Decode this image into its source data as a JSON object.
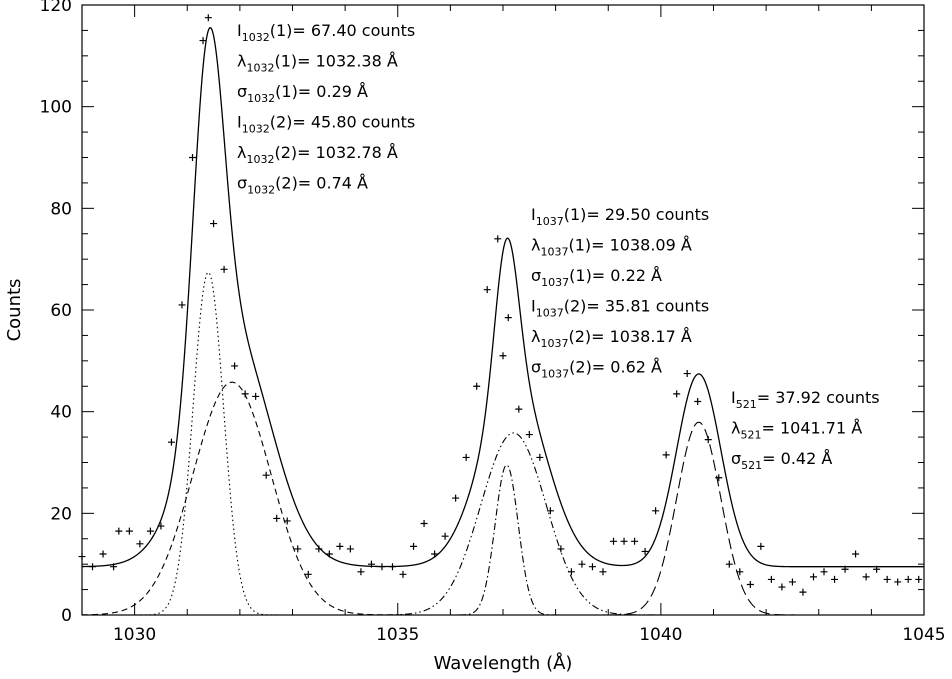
{
  "chart_data": {
    "type": "scatter",
    "xlabel": "Wavelength (Å)",
    "ylabel": "Counts",
    "xlim": [
      1029,
      1045
    ],
    "ylim": [
      0,
      120
    ],
    "x_ticks": [
      1030,
      1035,
      1040,
      1045
    ],
    "y_ticks": [
      0,
      20,
      40,
      60,
      80,
      100,
      120
    ],
    "grid": false,
    "baseline": 9.5,
    "observed_points": {
      "x": [
        1029.0,
        1029.2,
        1029.4,
        1029.6,
        1029.7,
        1029.9,
        1030.1,
        1030.3,
        1030.5,
        1030.7,
        1030.9,
        1031.1,
        1031.3,
        1031.4,
        1031.5,
        1031.7,
        1031.9,
        1032.1,
        1032.3,
        1032.5,
        1032.7,
        1032.9,
        1033.1,
        1033.3,
        1033.5,
        1033.7,
        1033.9,
        1034.1,
        1034.3,
        1034.5,
        1034.7,
        1034.9,
        1035.1,
        1035.3,
        1035.5,
        1035.7,
        1035.9,
        1036.1,
        1036.3,
        1036.5,
        1036.7,
        1036.9,
        1037.0,
        1037.1,
        1037.3,
        1037.5,
        1037.7,
        1037.9,
        1038.1,
        1038.3,
        1038.5,
        1038.7,
        1038.9,
        1039.1,
        1039.3,
        1039.5,
        1039.7,
        1039.9,
        1040.1,
        1040.3,
        1040.5,
        1040.7,
        1040.9,
        1041.1,
        1041.3,
        1041.5,
        1041.7,
        1041.9,
        1042.1,
        1042.3,
        1042.5,
        1042.7,
        1042.9,
        1043.1,
        1043.3,
        1043.5,
        1043.7,
        1043.9,
        1044.1,
        1044.3,
        1044.5,
        1044.7,
        1044.9
      ],
      "y": [
        11.5,
        9.5,
        12.0,
        9.5,
        16.5,
        16.5,
        14.0,
        16.5,
        17.5,
        34.0,
        61.0,
        90.0,
        113.0,
        117.5,
        77.0,
        68.0,
        49.0,
        43.5,
        43.0,
        27.5,
        19.0,
        18.5,
        13.0,
        8.0,
        13.0,
        12.0,
        13.5,
        13.0,
        8.5,
        10.0,
        9.5,
        9.5,
        8.0,
        13.5,
        18.0,
        12.0,
        15.5,
        23.0,
        31.0,
        45.0,
        64.0,
        74.0,
        51.0,
        58.5,
        40.5,
        35.5,
        31.0,
        20.5,
        13.0,
        8.5,
        10.0,
        9.5,
        8.5,
        14.5,
        14.5,
        14.5,
        12.5,
        20.5,
        31.5,
        43.5,
        47.5,
        42.0,
        34.5,
        27.0,
        10.0,
        8.5,
        6.0,
        13.5,
        7.0,
        5.5,
        6.5,
        4.5,
        7.5,
        8.5,
        7.0,
        9.0,
        12.0,
        7.5,
        9.0,
        7.0,
        6.5,
        7.0,
        7.0
      ]
    },
    "components": [
      {
        "line": "dotted",
        "intensity": 67.4,
        "center": 1032.38,
        "sigma": 0.29
      },
      {
        "line": "dashed",
        "intensity": 45.8,
        "center": 1032.78,
        "sigma": 0.74
      },
      {
        "line": "dash-dot",
        "intensity": 29.5,
        "center": 1038.09,
        "sigma": 0.22
      },
      {
        "line": "dash-dot-dot",
        "intensity": 35.81,
        "center": 1038.17,
        "sigma": 0.62
      },
      {
        "line": "long-dash",
        "intensity": 37.92,
        "center": 1041.71,
        "sigma": 0.42
      }
    ],
    "annotations": {
      "g1032": [
        {
          "main": "I",
          "sub": "1032",
          "rest": "(1)=  67.40 counts"
        },
        {
          "main": "λ",
          "sub": "1032",
          "rest": "(1)=  1032.38 Å"
        },
        {
          "main": "σ",
          "sub": "1032",
          "rest": "(1)=  0.29 Å"
        },
        {
          "main": "I",
          "sub": "1032",
          "rest": "(2)=  45.80 counts"
        },
        {
          "main": "λ",
          "sub": "1032",
          "rest": "(2)=  1032.78 Å"
        },
        {
          "main": "σ",
          "sub": "1032",
          "rest": "(2)=  0.74 Å"
        }
      ],
      "g1037": [
        {
          "main": "I",
          "sub": "1037",
          "rest": "(1)=  29.50 counts"
        },
        {
          "main": "λ",
          "sub": "1037",
          "rest": "(1)=  1038.09 Å"
        },
        {
          "main": "σ",
          "sub": "1037",
          "rest": "(1)=  0.22 Å"
        },
        {
          "main": "I",
          "sub": "1037",
          "rest": "(2)=  35.81 counts"
        },
        {
          "main": "λ",
          "sub": "1037",
          "rest": "(2)=  1038.17 Å"
        },
        {
          "main": "σ",
          "sub": "1037",
          "rest": "(2)=  0.62 Å"
        }
      ],
      "g521": [
        {
          "main": "I",
          "sub": "521",
          "rest": "=  37.92 counts"
        },
        {
          "main": "λ",
          "sub": "521",
          "rest": "=  1041.71 Å"
        },
        {
          "main": "σ",
          "sub": "521",
          "rest": "=  0.42 Å"
        }
      ]
    }
  }
}
